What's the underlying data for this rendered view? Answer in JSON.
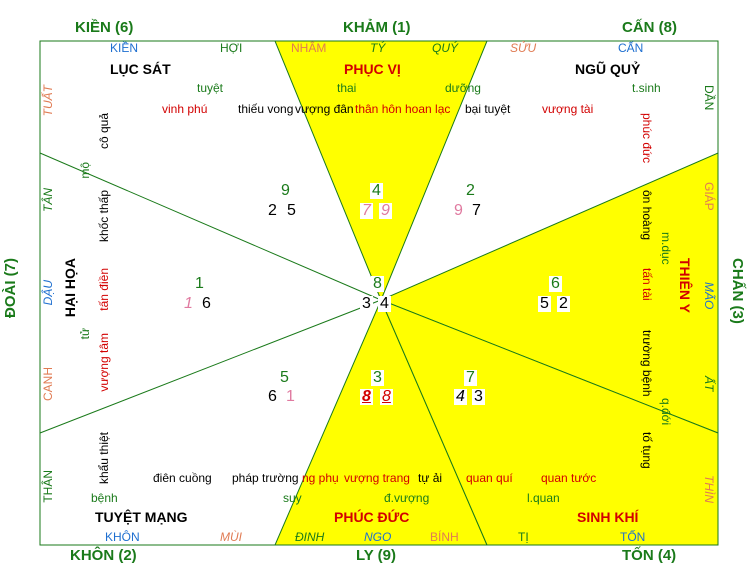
{
  "directions": {
    "top_left": "KIỀN (6)",
    "top": "KHẢM (1)",
    "top_right": "CẤN (8)",
    "left": "ĐOÀI (7)",
    "right": "CHẤN (3)",
    "bottom_left": "KHÔN (2)",
    "bottom": "LY (9)",
    "bottom_right": "TỐN (4)"
  },
  "ring": {
    "top": [
      "KIỀN",
      "HỢI",
      "NHÂM",
      "TÝ",
      "QUÝ",
      "SỬU",
      "CẤN"
    ],
    "bottom": [
      "KHÔN",
      "MÙI",
      "ĐINH",
      "NGO",
      "BÍNH",
      "TỊ",
      "TỐN"
    ],
    "left": [
      "TUẤT",
      "TÂN",
      "DẬU",
      "CANH",
      "THÂN"
    ],
    "right": [
      "DẦN",
      "GIÁP",
      "MÃO",
      "ẤT",
      "THÌN"
    ]
  },
  "sectors": {
    "luc_sat": "LỤC SÁT",
    "phuc_vi": "PHỤC VỊ",
    "ngu_quy": "NGŨ QUỶ",
    "hai_hoa": "HẠI HỌA",
    "thien_y": "THIÊN Y",
    "tuyet_mang": "TUYỆT MẠNG",
    "phuc_duc": "PHÚC ĐỨC",
    "sinh_khi": "SINH KHÍ"
  },
  "top_labels": {
    "tuyet": "tuyệt",
    "thai": "thai",
    "duong": "dưỡng",
    "tsinh": "t.sinh",
    "vinh_phu": "vinh phú",
    "thieu_vong": "thiếu vong",
    "vuong_dan": "vượng đân",
    "than_hon": "thân hôn",
    "hoan_lac": "hoan lạc",
    "bai_tuyet": "bại tuyệt",
    "vuong_tai": "vượng tài"
  },
  "bottom_labels": {
    "dien_cuong": "điên cuồng",
    "phap_truong": "pháp trường",
    "ng_phu": "ng phụ",
    "vuong_trang": "vượng trang",
    "tu_ai": "tự ải",
    "quan_qui": "quan quí",
    "quan_tuoc": "quan tước",
    "benh": "bệnh",
    "suy": "suy",
    "d_vuong": "đ.vượng",
    "l_quan": "l.quan"
  },
  "left_labels": {
    "co_qua": "cô quả",
    "mo": "mộ",
    "khoc_thap": "khốc thấp",
    "tan_dien": "tấn điền",
    "tu": "tử",
    "vuong_tam": "vượng tâm",
    "khau_thiet": "khẩu thiệt"
  },
  "right_labels": {
    "phuc_duc_v": "phúc đức",
    "on_hoang": "ôn hoàng",
    "m_duc": "m.dục",
    "tan_tai": "tấn tài",
    "truong_benh": "trường bệnh",
    "q_doi": "q.đới",
    "to_tung": "tố tụng"
  },
  "stars": {
    "nw": {
      "center": "9",
      "left": "2",
      "right": "5"
    },
    "n": {
      "center": "4",
      "left": "7",
      "right": "9"
    },
    "ne": {
      "center": "2",
      "left": "9",
      "right": "7"
    },
    "w": {
      "center": "1",
      "left": "1",
      "right": "6"
    },
    "c": {
      "center": "8",
      "left": "3",
      "right": "4"
    },
    "e": {
      "center": "6",
      "left": "5",
      "right": "2"
    },
    "sw": {
      "center": "5",
      "left": "6",
      "right": "1"
    },
    "s": {
      "center": "3",
      "left": "8",
      "right": "8"
    },
    "se": {
      "center": "7",
      "left": "4",
      "right": "3"
    }
  },
  "colors": {
    "yellow": "#ffff00",
    "green": "#1a7a1a",
    "red": "#d20000",
    "blue": "#1e6fd0",
    "orange": "#e07b53",
    "pink": "#e07aa0"
  }
}
